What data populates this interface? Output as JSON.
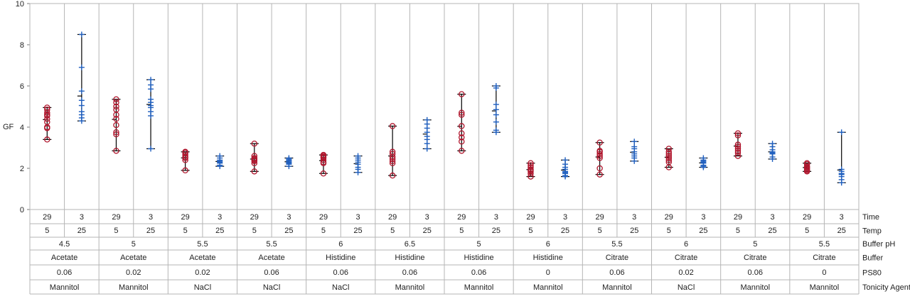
{
  "chart_data": {
    "type": "variability",
    "ylabel": "GF",
    "ylim": [
      0,
      10
    ],
    "yticks": [
      0,
      2,
      4,
      6,
      8,
      10
    ],
    "factor_labels": [
      "Time",
      "Temp",
      "Buffer pH",
      "Buffer",
      "PS80",
      "Tonicity Agent"
    ],
    "colors": {
      "Time 29": "#b0172e",
      "Time 3": "#1f5fbf"
    },
    "markers": {
      "Time 29": "circle",
      "Time 3": "plus"
    },
    "groups": [
      {
        "ph": "4.5",
        "buffer": "Acetate",
        "ps80": "0.06",
        "tonicity": "Mannitol",
        "cells": [
          {
            "time": "29",
            "temp": "5",
            "points": [
              4.95,
              4.85,
              4.7,
              4.6,
              4.55,
              4.4,
              4.25,
              4.0,
              3.95,
              3.4
            ]
          },
          {
            "time": "3",
            "temp": "25",
            "points": [
              8.5,
              6.9,
              5.75,
              5.3,
              5.05,
              4.75,
              4.6,
              4.45,
              4.3
            ]
          }
        ]
      },
      {
        "ph": "5",
        "buffer": "Acetate",
        "ps80": "0.02",
        "tonicity": "Mannitol",
        "cells": [
          {
            "time": "29",
            "temp": "5",
            "points": [
              5.35,
              5.2,
              5.0,
              4.85,
              4.6,
              4.4,
              4.1,
              3.75,
              3.65,
              2.85
            ]
          },
          {
            "time": "3",
            "temp": "25",
            "points": [
              6.3,
              6.05,
              5.85,
              5.35,
              5.2,
              5.05,
              4.95,
              4.75,
              4.55,
              2.95
            ]
          }
        ]
      },
      {
        "ph": "5.5",
        "buffer": "Acetate",
        "ps80": "0.02",
        "tonicity": "NaCl",
        "cells": [
          {
            "time": "29",
            "temp": "5",
            "points": [
              2.8,
              2.75,
              2.65,
              2.55,
              2.5,
              2.4,
              1.9
            ]
          },
          {
            "time": "3",
            "temp": "25",
            "points": [
              2.6,
              2.5,
              2.4,
              2.35,
              2.3,
              2.25,
              2.15,
              2.1
            ]
          }
        ]
      },
      {
        "ph": "5.5",
        "buffer": "Acetate",
        "ps80": "0.06",
        "tonicity": "NaCl",
        "cells": [
          {
            "time": "29",
            "temp": "5",
            "points": [
              3.2,
              2.6,
              2.5,
              2.45,
              2.4,
              2.35,
              2.25,
              1.85
            ]
          },
          {
            "time": "3",
            "temp": "25",
            "points": [
              2.5,
              2.45,
              2.4,
              2.35,
              2.3,
              2.25,
              2.2,
              2.1
            ]
          }
        ]
      },
      {
        "ph": "6",
        "buffer": "Histidine",
        "ps80": "0.06",
        "tonicity": "NaCl",
        "cells": [
          {
            "time": "29",
            "temp": "5",
            "points": [
              2.65,
              2.6,
              2.55,
              2.5,
              2.4,
              2.3,
              2.25,
              1.75
            ]
          },
          {
            "time": "3",
            "temp": "25",
            "points": [
              2.6,
              2.5,
              2.4,
              2.3,
              2.2,
              2.05,
              1.95,
              1.8
            ]
          }
        ]
      },
      {
        "ph": "6.5",
        "buffer": "Histidine",
        "ps80": "0.06",
        "tonicity": "Mannitol",
        "cells": [
          {
            "time": "29",
            "temp": "5",
            "points": [
              4.05,
              2.8,
              2.7,
              2.55,
              2.45,
              2.35,
              2.25,
              1.65
            ]
          },
          {
            "time": "3",
            "temp": "25",
            "points": [
              4.35,
              4.15,
              3.95,
              3.75,
              3.55,
              3.4,
              3.2,
              2.95
            ]
          }
        ]
      },
      {
        "ph": "5",
        "buffer": "Histidine",
        "ps80": "0.06",
        "tonicity": "Mannitol",
        "cells": [
          {
            "time": "29",
            "temp": "5",
            "points": [
              5.6,
              4.7,
              4.6,
              4.05,
              3.7,
              3.5,
              3.3,
              2.85
            ]
          },
          {
            "time": "3",
            "temp": "25",
            "points": [
              6.0,
              5.9,
              5.1,
              4.85,
              4.6,
              4.25,
              3.85,
              3.75
            ]
          }
        ]
      },
      {
        "ph": "6",
        "buffer": "Histidine",
        "ps80": "0",
        "tonicity": "Mannitol",
        "cells": [
          {
            "time": "29",
            "temp": "5",
            "points": [
              2.25,
              2.15,
              2.05,
              1.95,
              1.9,
              1.85,
              1.75,
              1.6
            ]
          },
          {
            "time": "3",
            "temp": "25",
            "points": [
              2.4,
              2.2,
              2.05,
              1.95,
              1.85,
              1.8,
              1.75,
              1.65,
              1.6
            ]
          }
        ]
      },
      {
        "ph": "5.5",
        "buffer": "Citrate",
        "ps80": "0.06",
        "tonicity": "Mannitol",
        "cells": [
          {
            "time": "29",
            "temp": "5",
            "points": [
              3.25,
              2.85,
              2.8,
              2.7,
              2.6,
              2.5,
              2.0,
              1.7
            ]
          },
          {
            "time": "3",
            "temp": "25",
            "points": [
              3.3,
              3.05,
              2.95,
              2.8,
              2.7,
              2.6,
              2.5,
              2.35
            ]
          }
        ]
      },
      {
        "ph": "6",
        "buffer": "Citrate",
        "ps80": "0.02",
        "tonicity": "NaCl",
        "cells": [
          {
            "time": "29",
            "temp": "5",
            "points": [
              2.95,
              2.8,
              2.7,
              2.6,
              2.5,
              2.4,
              2.3,
              2.05
            ]
          },
          {
            "time": "3",
            "temp": "25",
            "points": [
              2.5,
              2.4,
              2.35,
              2.3,
              2.25,
              2.15,
              2.1,
              2.05
            ]
          }
        ]
      },
      {
        "ph": "5",
        "buffer": "Citrate",
        "ps80": "0.06",
        "tonicity": "Mannitol",
        "cells": [
          {
            "time": "29",
            "temp": "5",
            "points": [
              3.7,
              3.6,
              3.15,
              3.05,
              2.95,
              2.85,
              2.75,
              2.6
            ]
          },
          {
            "time": "3",
            "temp": "25",
            "points": [
              3.2,
              3.05,
              2.9,
              2.8,
              2.75,
              2.7,
              2.55,
              2.45
            ]
          }
        ]
      },
      {
        "ph": "5.5",
        "buffer": "Citrate",
        "ps80": "0",
        "tonicity": "Mannitol",
        "cells": [
          {
            "time": "29",
            "temp": "5",
            "points": [
              2.25,
              2.2,
              2.1,
              2.05,
              2.0,
              1.95,
              1.9,
              1.85
            ]
          },
          {
            "time": "3",
            "temp": "25",
            "points": [
              3.75,
              1.95,
              1.85,
              1.75,
              1.7,
              1.6,
              1.45,
              1.3
            ]
          }
        ]
      }
    ]
  }
}
